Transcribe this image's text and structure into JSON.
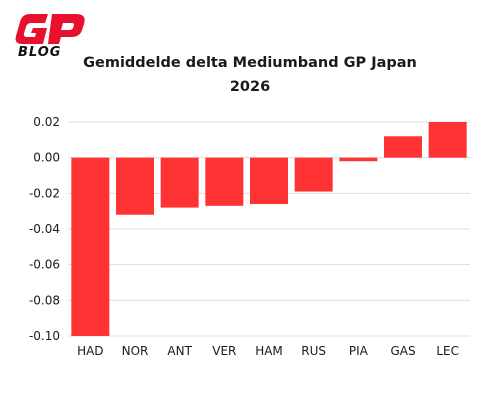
{
  "brand": {
    "logo_text": "GP BLOG",
    "logo_color": "#e8112d"
  },
  "chart_data": {
    "type": "bar",
    "title_line1": "Gemiddelde delta Mediumband GP Japan",
    "title_line2": "2026",
    "xlabel": "",
    "ylabel": "",
    "categories": [
      "HAD",
      "NOR",
      "ANT",
      "VER",
      "HAM",
      "RUS",
      "PIA",
      "GAS",
      "LEC"
    ],
    "values": [
      -0.1,
      -0.032,
      -0.028,
      -0.027,
      -0.026,
      -0.019,
      -0.002,
      0.012,
      0.02
    ],
    "ylim": [
      -0.1,
      0.02
    ],
    "yticks": [
      "0.02",
      "0.00",
      "-0.02",
      "-0.04",
      "-0.06",
      "-0.08",
      "-0.10"
    ],
    "grid": true,
    "bar_color": "#ff3333"
  }
}
